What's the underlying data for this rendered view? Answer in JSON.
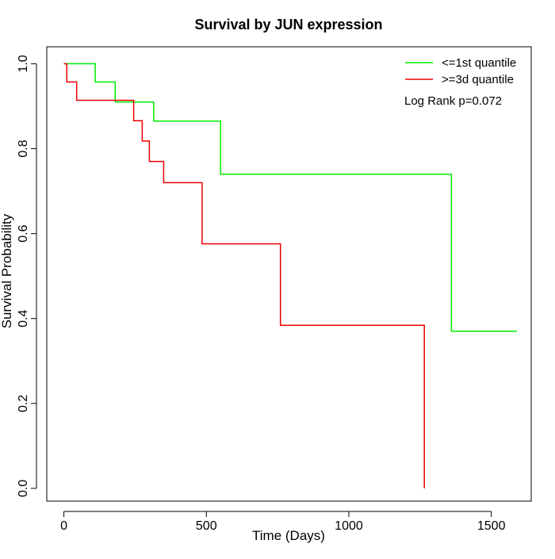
{
  "chart_data": {
    "type": "line",
    "title": "Survival by JUN expression",
    "xlabel": "Time (Days)",
    "ylabel": "Survival Probability",
    "xlim": [
      -60,
      1640
    ],
    "ylim": [
      -0.03,
      1.04
    ],
    "xticks": [
      0,
      500,
      1000,
      1500
    ],
    "xtick_labels": [
      "0",
      "500",
      "1000",
      "1500"
    ],
    "yticks": [
      0.0,
      0.2,
      0.4,
      0.6,
      0.8,
      1.0
    ],
    "ytick_labels": [
      "0.0",
      "0.2",
      "0.4",
      "0.6",
      "0.8",
      "1.0"
    ],
    "grid": false,
    "legend_position": "top-right",
    "annotation": "Log Rank p=0.072",
    "series": [
      {
        "name": "<=1st quantile",
        "color": "#00ee00",
        "step": true,
        "points": [
          [
            0,
            1.0
          ],
          [
            110,
            0.957
          ],
          [
            180,
            0.91
          ],
          [
            315,
            0.865
          ],
          [
            550,
            0.74
          ],
          [
            1360,
            0.37
          ],
          [
            1590,
            0.37
          ]
        ]
      },
      {
        "name": ">=3d quantile",
        "color": "#ee0000",
        "step": true,
        "points": [
          [
            0,
            1.0
          ],
          [
            10,
            0.957
          ],
          [
            45,
            0.914
          ],
          [
            245,
            0.866
          ],
          [
            275,
            0.818
          ],
          [
            300,
            0.77
          ],
          [
            350,
            0.72
          ],
          [
            485,
            0.576
          ],
          [
            760,
            0.384
          ],
          [
            1265,
            0.0
          ]
        ]
      }
    ]
  }
}
